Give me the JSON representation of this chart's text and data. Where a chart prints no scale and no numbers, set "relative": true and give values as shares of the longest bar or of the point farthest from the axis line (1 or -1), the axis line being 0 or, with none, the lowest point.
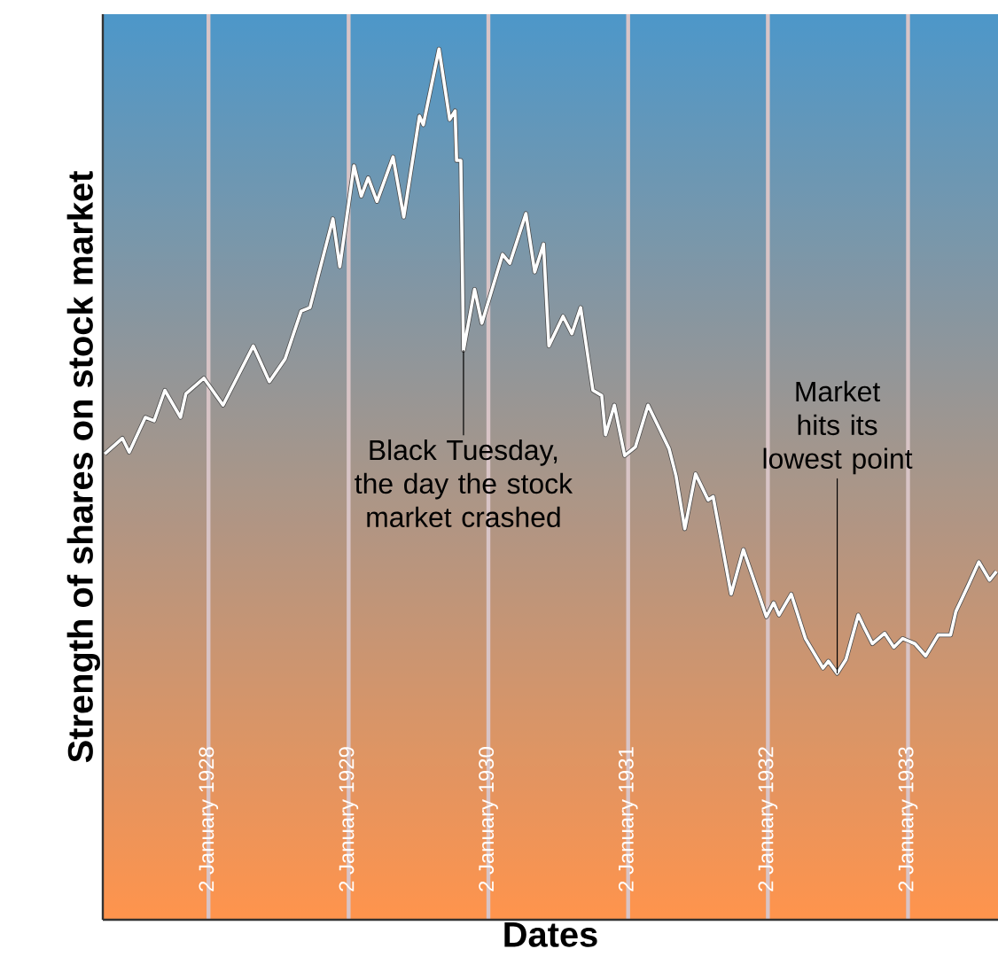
{
  "chart_data": {
    "type": "line",
    "relative": true,
    "xlabel": "Dates",
    "ylabel": "Strength of shares on stock market",
    "xlim": [
      "1927-04-01",
      "1933-08-25"
    ],
    "xticks": [
      {
        "value": "1928-01-02",
        "label": "2 January 1928"
      },
      {
        "value": "1929-01-02",
        "label": "2 January 1929"
      },
      {
        "value": "1930-01-02",
        "label": "2 January 1930"
      },
      {
        "value": "1931-01-02",
        "label": "2 January 1931"
      },
      {
        "value": "1932-01-02",
        "label": "2 January 1932"
      },
      {
        "value": "1933-01-02",
        "label": "2 January 1933"
      }
    ],
    "grid": "x",
    "x": [
      "1927-04-06",
      "1927-05-22",
      "1927-06-09",
      "1927-07-21",
      "1927-08-13",
      "1927-09-10",
      "1927-10-21",
      "1927-11-04",
      "1927-12-21",
      "1928-02-09",
      "1928-04-28",
      "1928-06-09",
      "1928-07-20",
      "1928-08-31",
      "1928-09-23",
      "1928-11-22",
      "1928-12-10",
      "1929-01-16",
      "1929-02-04",
      "1929-02-22",
      "1929-03-17",
      "1929-04-28",
      "1929-05-26",
      "1929-07-06",
      "1929-07-16",
      "1929-08-26",
      "1929-09-23",
      "1929-10-07",
      "1929-10-11",
      "1929-10-22",
      "1929-10-29",
      "1929-11-27",
      "1929-12-16",
      "1930-02-08",
      "1930-02-27",
      "1930-04-10",
      "1930-05-03",
      "1930-05-26",
      "1930-06-09",
      "1930-07-16",
      "1930-08-08",
      "1930-08-31",
      "1930-10-02",
      "1930-10-25",
      "1930-11-04",
      "1930-11-27",
      "1930-12-24",
      "1931-01-21",
      "1931-02-23",
      "1931-04-19",
      "1931-05-07",
      "1931-05-30",
      "1931-06-27",
      "1931-07-30",
      "1931-08-12",
      "1931-09-28",
      "1931-10-30",
      "1931-12-06",
      "1931-12-29",
      "1932-01-17",
      "1932-01-31",
      "1932-03-03",
      "1932-04-09",
      "1932-05-25",
      "1932-06-08",
      "1932-07-01",
      "1932-07-24",
      "1932-08-25",
      "1932-09-08",
      "1932-10-01",
      "1932-11-02",
      "1932-11-26",
      "1932-12-19",
      "1933-01-20",
      "1933-02-17",
      "1933-03-22",
      "1933-04-23",
      "1933-05-07",
      "1933-06-08",
      "1933-07-06",
      "1933-08-03",
      "1933-08-21"
    ],
    "series": [
      {
        "color": "#ffffff",
        "values": [
          0.535,
          0.553,
          0.537,
          0.577,
          0.573,
          0.608,
          0.577,
          0.604,
          0.622,
          0.591,
          0.659,
          0.618,
          0.644,
          0.699,
          0.703,
          0.805,
          0.75,
          0.866,
          0.831,
          0.852,
          0.825,
          0.876,
          0.807,
          0.923,
          0.913,
          1,
          0.919,
          0.929,
          0.872,
          0.872,
          0.654,
          0.724,
          0.685,
          0.764,
          0.754,
          0.811,
          0.744,
          0.776,
          0.659,
          0.693,
          0.673,
          0.703,
          0.608,
          0.602,
          0.557,
          0.591,
          0.533,
          0.543,
          0.591,
          0.541,
          0.51,
          0.449,
          0.512,
          0.482,
          0.486,
          0.374,
          0.425,
          0.378,
          0.348,
          0.364,
          0.35,
          0.374,
          0.323,
          0.289,
          0.297,
          0.283,
          0.299,
          0.35,
          0.337,
          0.317,
          0.329,
          0.313,
          0.323,
          0.317,
          0.303,
          0.327,
          0.327,
          0.354,
          0.384,
          0.411,
          0.39,
          0.4
        ]
      }
    ],
    "marker": "none",
    "line_style": "solid",
    "annotations": [
      {
        "text": "Black Tuesday, the day the stock market crashed",
        "x": "1929-10-29",
        "y": 0.654
      },
      {
        "text": "Market hits its lowest point",
        "x": "1932-07-01",
        "y": 0.283
      }
    ]
  }
}
